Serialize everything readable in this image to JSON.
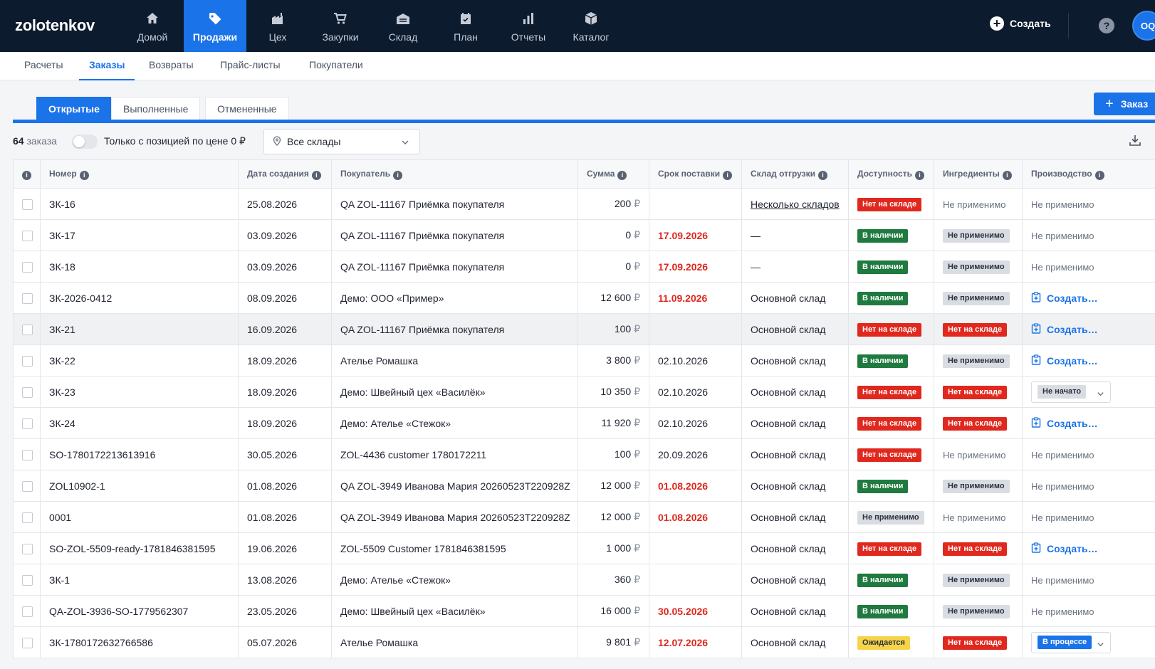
{
  "app": {
    "logo": "zolotenkov"
  },
  "nav": [
    {
      "label": "Домой",
      "icon": "home-icon"
    },
    {
      "label": "Продажи",
      "icon": "tag-icon",
      "active": true
    },
    {
      "label": "Цех",
      "icon": "factory-icon"
    },
    {
      "label": "Закупки",
      "icon": "cart-icon"
    },
    {
      "label": "Склад",
      "icon": "warehouse-icon"
    },
    {
      "label": "План",
      "icon": "calendar-icon"
    },
    {
      "label": "Отчеты",
      "icon": "bar-chart-icon"
    },
    {
      "label": "Каталог",
      "icon": "box-icon"
    }
  ],
  "header": {
    "create_label": "Создать",
    "help": "?",
    "avatar": "OQ"
  },
  "subtabs": [
    "Расчеты",
    "Заказы",
    "Возвраты",
    "Прайс-листы",
    "Покупатели"
  ],
  "status_tabs": [
    "Открытые",
    "Выполненные",
    "Отмененные"
  ],
  "order_button": "Заказ",
  "toolbar": {
    "count": "64",
    "count_label": "заказа",
    "toggle_label": "Только с позицией по цене 0 ₽",
    "warehouse_select": "Все склады"
  },
  "columns": [
    "Номер",
    "Дата создания",
    "Покупатель",
    "Сумма",
    "Срок поставки",
    "Склад отгрузки",
    "Доступность",
    "Ингредиенты",
    "Производство"
  ],
  "currency": "₽",
  "labels": {
    "not_applicable": "Не применимо",
    "out_of_stock": "Нет на складе",
    "in_stock": "В наличии",
    "expected": "Ожидается",
    "create": "Создать…",
    "not_started": "Не начато",
    "in_progress": "В процессе"
  },
  "rows": [
    {
      "num": "ЗК-16",
      "date": "25.08.2026",
      "buyer": "QA ZOL-11167 Приёмка покупателя",
      "sum": "200",
      "due": "",
      "due_red": false,
      "wh": "Несколько складов",
      "wh_link": true,
      "avail": "out",
      "ingr": "na_text",
      "prod": "na"
    },
    {
      "num": "ЗК-17",
      "date": "03.09.2026",
      "buyer": "QA ZOL-11167 Приёмка покупателя",
      "sum": "0",
      "due": "17.09.2026",
      "due_red": true,
      "wh": "—",
      "avail": "in",
      "ingr": "na_badge",
      "prod": "na"
    },
    {
      "num": "ЗК-18",
      "date": "03.09.2026",
      "buyer": "QA ZOL-11167 Приёмка покупателя",
      "sum": "0",
      "due": "17.09.2026",
      "due_red": true,
      "wh": "—",
      "avail": "in",
      "ingr": "na_badge",
      "prod": "na"
    },
    {
      "num": "ЗК-2026-0412",
      "date": "08.09.2026",
      "buyer": "Демо: ООО «Пример»",
      "sum": "12 600",
      "due": "11.09.2026",
      "due_red": true,
      "wh": "Основной склад",
      "avail": "in",
      "ingr": "na_badge",
      "prod": "create"
    },
    {
      "num": "ЗК-21",
      "date": "16.09.2026",
      "buyer": "QA ZOL-11167 Приёмка покупателя",
      "sum": "100",
      "due": "",
      "due_red": false,
      "wh": "Основной склад",
      "avail": "out",
      "ingr": "out",
      "prod": "create",
      "hl": true
    },
    {
      "num": "ЗК-22",
      "date": "18.09.2026",
      "buyer": "Ателье Ромашка",
      "sum": "3 800",
      "due": "02.10.2026",
      "due_red": false,
      "wh": "Основной склад",
      "avail": "in",
      "ingr": "na_badge",
      "prod": "create"
    },
    {
      "num": "ЗК-23",
      "date": "18.09.2026",
      "buyer": "Демо: Швейный цех «Василёк»",
      "sum": "10 350",
      "due": "02.10.2026",
      "due_red": false,
      "wh": "Основной склад",
      "avail": "out",
      "ingr": "out",
      "prod": "not_started"
    },
    {
      "num": "ЗК-24",
      "date": "18.09.2026",
      "buyer": "Демо: Ателье «Стежок»",
      "sum": "11 920",
      "due": "02.10.2026",
      "due_red": false,
      "wh": "Основной склад",
      "avail": "out",
      "ingr": "out",
      "prod": "create"
    },
    {
      "num": "SO-1780172213613916",
      "date": "30.05.2026",
      "buyer": "ZOL-4436 customer 1780172211",
      "sum": "100",
      "due": "20.09.2026",
      "due_red": false,
      "wh": "Основной склад",
      "avail": "out",
      "ingr": "na_text",
      "prod": "na"
    },
    {
      "num": "ZOL10902-1",
      "date": "01.08.2026",
      "buyer": "QA ZOL-3949 Иванова Мария 20260523T220928Z",
      "sum": "12 000",
      "due": "01.08.2026",
      "due_red": true,
      "wh": "Основной склад",
      "avail": "in",
      "ingr": "na_badge",
      "prod": "na"
    },
    {
      "num": "0001",
      "date": "01.08.2026",
      "buyer": "QA ZOL-3949 Иванова Мария 20260523T220928Z",
      "sum": "12 000",
      "due": "01.08.2026",
      "due_red": true,
      "wh": "Основной склад",
      "avail": "na_badge",
      "ingr": "na_text",
      "prod": "na"
    },
    {
      "num": "SO-ZOL-5509-ready-1781846381595",
      "date": "19.06.2026",
      "buyer": "ZOL-5509 Customer 1781846381595",
      "sum": "1 000",
      "due": "",
      "due_red": false,
      "wh": "Основной склад",
      "avail": "out",
      "ingr": "out",
      "prod": "create"
    },
    {
      "num": "ЗК-1",
      "date": "13.08.2026",
      "buyer": "Демо: Ателье «Стежок»",
      "sum": "360",
      "due": "",
      "due_red": false,
      "wh": "Основной склад",
      "avail": "in",
      "ingr": "na_badge",
      "prod": "na"
    },
    {
      "num": "QA-ZOL-3936-SO-1779562307",
      "date": "23.05.2026",
      "buyer": "Демо: Швейный цех «Василёк»",
      "sum": "16 000",
      "due": "30.05.2026",
      "due_red": true,
      "wh": "Основной склад",
      "avail": "in",
      "ingr": "na_badge",
      "prod": "na"
    },
    {
      "num": "ЗК-1780172632766586",
      "date": "05.07.2026",
      "buyer": "Ателье Ромашка",
      "sum": "9 801",
      "due": "12.07.2026",
      "due_red": true,
      "wh": "Основной склад",
      "avail": "expected",
      "ingr": "out",
      "prod": "in_progress"
    }
  ]
}
